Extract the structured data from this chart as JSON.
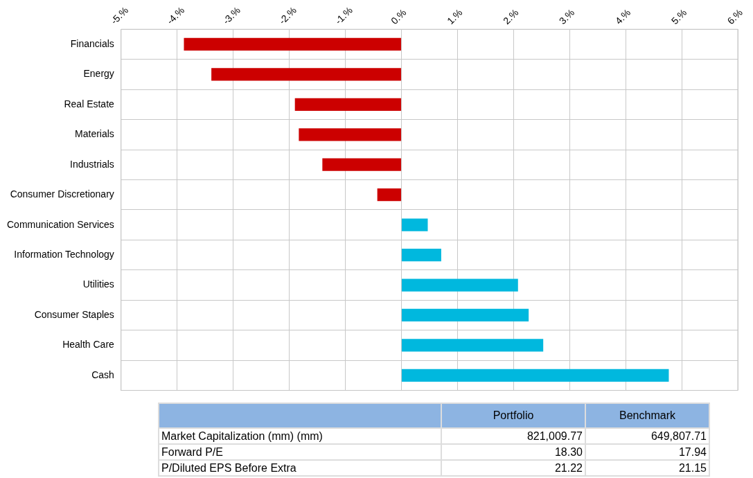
{
  "chart_data": [
    {
      "type": "bar",
      "orientation": "horizontal",
      "categories": [
        "Financials",
        "Energy",
        "Real Estate",
        "Materials",
        "Industrials",
        "Consumer Discretionary",
        "Communication Services",
        "Information Technology",
        "Utilities",
        "Consumer Staples",
        "Health Care",
        "Cash"
      ],
      "values": [
        -3.88,
        -3.39,
        -1.9,
        -1.83,
        -1.41,
        -0.43,
        0.47,
        0.71,
        2.08,
        2.27,
        2.53,
        4.77
      ],
      "colors": [
        "#cc0000",
        "#cc0000",
        "#cc0000",
        "#cc0000",
        "#cc0000",
        "#cc0000",
        "#00b8de",
        "#00b8de",
        "#00b8de",
        "#00b8de",
        "#00b8de",
        "#00b8de"
      ],
      "xlim": [
        -5,
        6
      ],
      "xticks": [
        {
          "value": -5,
          "label": "-5.%"
        },
        {
          "value": -4,
          "label": "-4.%"
        },
        {
          "value": -3,
          "label": "-3.%"
        },
        {
          "value": -2,
          "label": "-2.%"
        },
        {
          "value": -1,
          "label": "-1.%"
        },
        {
          "value": 0,
          "label": "0.%"
        },
        {
          "value": 1,
          "label": "1.%"
        },
        {
          "value": 2,
          "label": "2.%"
        },
        {
          "value": 3,
          "label": "3.%"
        },
        {
          "value": 4,
          "label": "4.%"
        },
        {
          "value": 5,
          "label": "5.%"
        },
        {
          "value": 6,
          "label": "6.%"
        }
      ],
      "grid": true,
      "legend": false
    },
    {
      "type": "other",
      "categories": [
        "Market Capitalization (mm) (mm)",
        "Forward P/E",
        "P/Diluted EPS Before Extra"
      ],
      "annotations": [
        "Portfolio",
        "Benchmark",
        "821,009.77",
        "649,807.71",
        "18.30",
        "17.94",
        "21.22",
        "21.15"
      ]
    }
  ]
}
